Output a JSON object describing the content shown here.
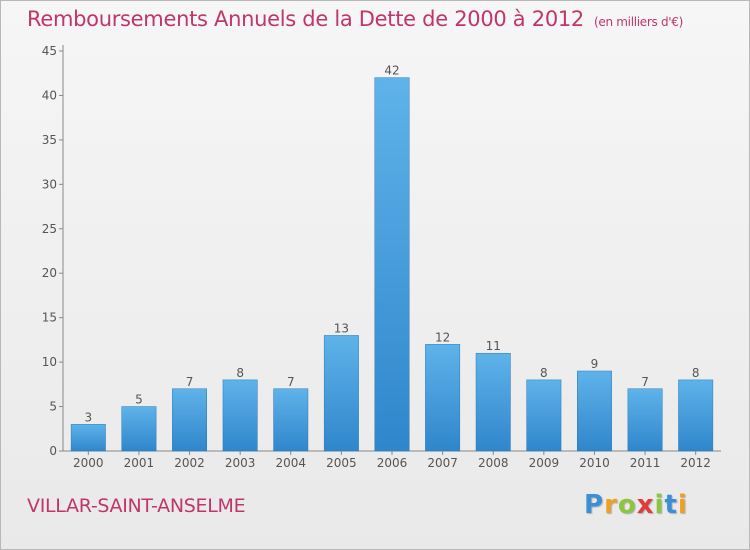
{
  "title": "Remboursements Annuels de la Dette de 2000 à 2012",
  "unit": "(en milliers d'€)",
  "commune": "VILLAR-SAINT-ANSELME",
  "logo": {
    "letters": [
      "P",
      "r",
      "o",
      "x",
      "i",
      "t",
      "i"
    ],
    "colors": [
      "#3a8fd6",
      "#f0a020",
      "#8cc63f",
      "#e23b3b",
      "#8cc63f",
      "#3a8fd6",
      "#f0a020"
    ]
  },
  "colors": {
    "accent": "#c0356b",
    "bar": "#3f97d9",
    "bar_light": "#5fb3ea"
  },
  "chart_data": {
    "type": "bar",
    "title": "Remboursements Annuels de la Dette de 2000 à 2012",
    "categories": [
      "2000",
      "2001",
      "2002",
      "2003",
      "2004",
      "2005",
      "2006",
      "2007",
      "2008",
      "2009",
      "2010",
      "2011",
      "2012"
    ],
    "values": [
      3,
      5,
      7,
      8,
      7,
      13,
      42,
      12,
      11,
      8,
      9,
      7,
      8
    ],
    "ylim": [
      0,
      45
    ],
    "yticks": [
      0,
      5,
      10,
      15,
      20,
      25,
      30,
      35,
      40,
      45
    ],
    "grid": false,
    "legend": "none",
    "xlabel": "",
    "ylabel": ""
  }
}
